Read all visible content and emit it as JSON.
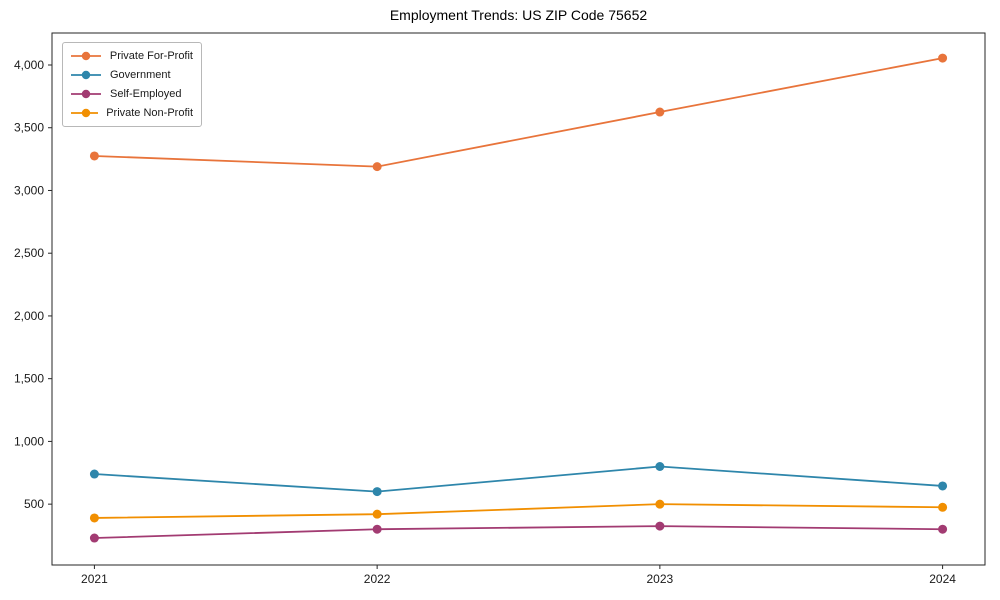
{
  "chart_data": {
    "type": "line",
    "title": "Employment Trends: US ZIP Code 75652",
    "xlabel": "",
    "ylabel": "",
    "x": [
      2021,
      2022,
      2023,
      2024
    ],
    "xticklabels": [
      "2021",
      "2022",
      "2023",
      "2024"
    ],
    "yticks": [
      500,
      1000,
      1500,
      2000,
      2500,
      3000,
      3500,
      4000
    ],
    "xlim": [
      2020.85,
      2024.15
    ],
    "ylim": [
      15,
      4255
    ],
    "grid": false,
    "legend_position": "upper-left",
    "series": [
      {
        "name": "Private For-Profit",
        "color": "#E8743B",
        "values": [
          3275,
          3190,
          3625,
          4055
        ]
      },
      {
        "name": "Government",
        "color": "#2E86AB",
        "values": [
          740,
          600,
          800,
          645
        ]
      },
      {
        "name": "Self-Employed",
        "color": "#A23B72",
        "values": [
          230,
          300,
          325,
          300
        ]
      },
      {
        "name": "Private Non-Profit",
        "color": "#F18F01",
        "values": [
          390,
          420,
          500,
          475
        ]
      }
    ]
  },
  "colors": {
    "spine": "#262626",
    "tick_label": "#1a1a1a",
    "legend_border": "#b8b8b8",
    "background": "#ffffff"
  }
}
